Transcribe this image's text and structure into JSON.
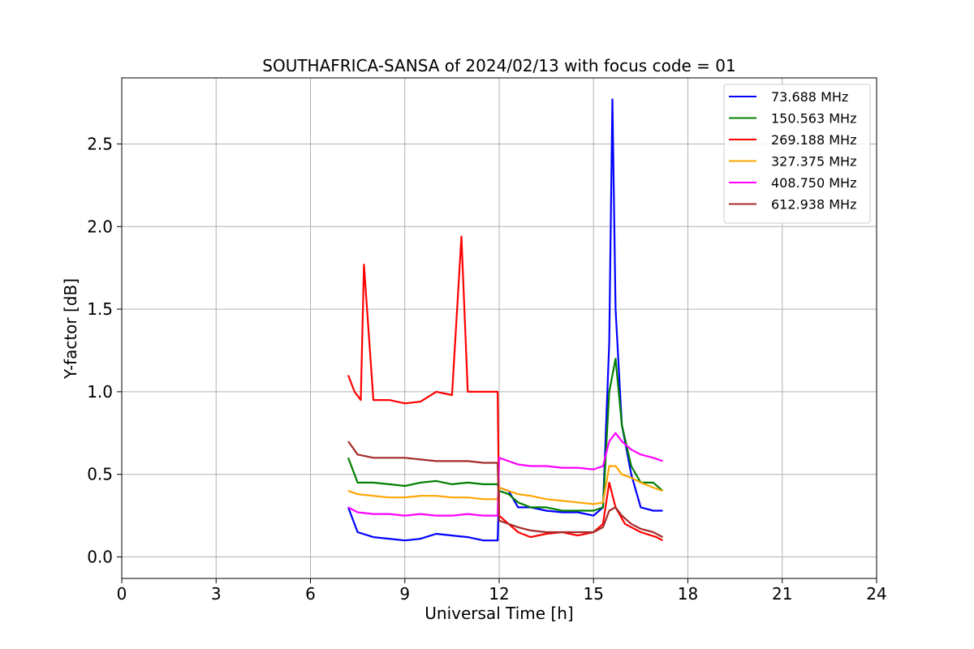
{
  "chart_data": {
    "type": "line",
    "title": "SOUTHAFRICA-SANSA of 2024/02/13 with focus code = 01",
    "xlabel": "Universal Time [h]",
    "ylabel": "Y-factor [dB]",
    "xlim": [
      0,
      24
    ],
    "ylim": [
      -0.13,
      2.9
    ],
    "xticks": [
      0,
      3,
      6,
      9,
      12,
      15,
      18,
      21,
      24
    ],
    "xtick_labels": [
      "0",
      "3",
      "6",
      "9",
      "12",
      "15",
      "18",
      "21",
      "24"
    ],
    "yticks": [
      0.0,
      0.5,
      1.0,
      1.5,
      2.0,
      2.5
    ],
    "ytick_labels": [
      "0.0",
      "0.5",
      "1.0",
      "1.5",
      "2.0",
      "2.5"
    ],
    "grid": true,
    "legend_position": "top-right",
    "series": [
      {
        "name": "73.688 MHz",
        "color": "#0000ff",
        "x": [
          7.2,
          7.5,
          8.0,
          8.5,
          9.0,
          9.5,
          10.0,
          10.5,
          11.0,
          11.5,
          11.95,
          12.0,
          12.3,
          12.6,
          13.0,
          13.5,
          14.0,
          14.5,
          15.0,
          15.3,
          15.5,
          15.6,
          15.7,
          15.9,
          16.2,
          16.5,
          16.9,
          17.2
        ],
        "y": [
          0.3,
          0.15,
          0.12,
          0.11,
          0.1,
          0.11,
          0.14,
          0.13,
          0.12,
          0.1,
          0.1,
          0.42,
          0.4,
          0.3,
          0.3,
          0.28,
          0.27,
          0.27,
          0.25,
          0.3,
          1.3,
          2.77,
          1.5,
          0.8,
          0.5,
          0.3,
          0.28,
          0.28
        ]
      },
      {
        "name": "150.563 MHz",
        "color": "#008000",
        "x": [
          7.2,
          7.5,
          8.0,
          8.5,
          9.0,
          9.5,
          10.0,
          10.5,
          11.0,
          11.5,
          11.95,
          12.0,
          12.3,
          12.6,
          13.0,
          13.5,
          14.0,
          14.5,
          15.0,
          15.3,
          15.5,
          15.7,
          15.9,
          16.2,
          16.5,
          16.9,
          17.2
        ],
        "y": [
          0.6,
          0.45,
          0.45,
          0.44,
          0.43,
          0.45,
          0.46,
          0.44,
          0.45,
          0.44,
          0.44,
          0.4,
          0.38,
          0.33,
          0.3,
          0.3,
          0.28,
          0.28,
          0.28,
          0.3,
          1.0,
          1.2,
          0.8,
          0.55,
          0.45,
          0.45,
          0.4
        ]
      },
      {
        "name": "269.188 MHz",
        "color": "#ff0000",
        "x": [
          7.2,
          7.4,
          7.6,
          7.7,
          8.0,
          8.5,
          9.0,
          9.5,
          10.0,
          10.5,
          10.8,
          11.0,
          11.5,
          11.95,
          12.0,
          12.3,
          12.6,
          13.0,
          13.5,
          14.0,
          14.5,
          15.0,
          15.3,
          15.5,
          15.7,
          16.0,
          16.5,
          17.0,
          17.2
        ],
        "y": [
          1.1,
          1.0,
          0.95,
          1.77,
          0.95,
          0.95,
          0.93,
          0.94,
          1.0,
          0.98,
          1.94,
          1.0,
          1.0,
          1.0,
          0.25,
          0.2,
          0.15,
          0.12,
          0.14,
          0.15,
          0.13,
          0.15,
          0.2,
          0.45,
          0.3,
          0.2,
          0.15,
          0.12,
          0.1
        ]
      },
      {
        "name": "327.375 MHz",
        "color": "#ffa500",
        "x": [
          7.2,
          7.5,
          8.0,
          8.5,
          9.0,
          9.5,
          10.0,
          10.5,
          11.0,
          11.5,
          11.95,
          12.0,
          12.3,
          12.6,
          13.0,
          13.5,
          14.0,
          14.5,
          15.0,
          15.3,
          15.5,
          15.7,
          15.9,
          16.2,
          16.5,
          16.9,
          17.2
        ],
        "y": [
          0.4,
          0.38,
          0.37,
          0.36,
          0.36,
          0.37,
          0.37,
          0.36,
          0.36,
          0.35,
          0.35,
          0.42,
          0.4,
          0.38,
          0.37,
          0.35,
          0.34,
          0.33,
          0.32,
          0.33,
          0.55,
          0.55,
          0.5,
          0.48,
          0.45,
          0.42,
          0.4
        ]
      },
      {
        "name": "408.750 MHz",
        "color": "#ff00ff",
        "x": [
          7.2,
          7.5,
          8.0,
          8.5,
          9.0,
          9.5,
          10.0,
          10.5,
          11.0,
          11.5,
          11.95,
          12.0,
          12.3,
          12.6,
          13.0,
          13.5,
          14.0,
          14.5,
          15.0,
          15.3,
          15.5,
          15.7,
          15.9,
          16.2,
          16.5,
          16.9,
          17.2
        ],
        "y": [
          0.3,
          0.27,
          0.26,
          0.26,
          0.25,
          0.26,
          0.25,
          0.25,
          0.26,
          0.25,
          0.25,
          0.6,
          0.58,
          0.56,
          0.55,
          0.55,
          0.54,
          0.54,
          0.53,
          0.55,
          0.7,
          0.75,
          0.7,
          0.65,
          0.62,
          0.6,
          0.58
        ]
      },
      {
        "name": "612.938 MHz",
        "color": "#a52a2a",
        "x": [
          7.2,
          7.5,
          8.0,
          8.5,
          9.0,
          9.5,
          10.0,
          10.5,
          11.0,
          11.5,
          11.95,
          12.0,
          12.3,
          12.6,
          13.0,
          13.5,
          14.0,
          14.5,
          15.0,
          15.3,
          15.5,
          15.7,
          15.9,
          16.2,
          16.5,
          16.9,
          17.2
        ],
        "y": [
          0.7,
          0.62,
          0.6,
          0.6,
          0.6,
          0.59,
          0.58,
          0.58,
          0.58,
          0.57,
          0.57,
          0.22,
          0.2,
          0.18,
          0.16,
          0.15,
          0.15,
          0.15,
          0.15,
          0.18,
          0.28,
          0.3,
          0.25,
          0.2,
          0.17,
          0.15,
          0.12
        ]
      }
    ]
  }
}
